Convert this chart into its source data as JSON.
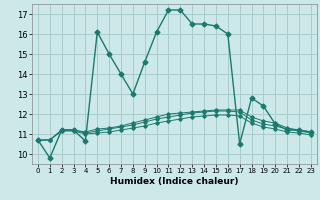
{
  "xlabel": "Humidex (Indice chaleur)",
  "background_color": "#cce8e8",
  "grid_color": "#aacccc",
  "line_color": "#1a7a6e",
  "xlim": [
    -0.5,
    23.5
  ],
  "ylim": [
    9.5,
    17.5
  ],
  "yticks": [
    10,
    11,
    12,
    13,
    14,
    15,
    16,
    17
  ],
  "xticks": [
    0,
    1,
    2,
    3,
    4,
    5,
    6,
    7,
    8,
    9,
    10,
    11,
    12,
    13,
    14,
    15,
    16,
    17,
    18,
    19,
    20,
    21,
    22,
    23
  ],
  "series": [
    [
      10.7,
      9.8,
      11.2,
      11.2,
      10.65,
      16.1,
      15.0,
      14.0,
      13.0,
      14.6,
      16.1,
      17.2,
      17.2,
      16.5,
      16.5,
      16.4,
      16.0,
      10.5,
      12.8,
      12.4,
      11.5,
      11.2,
      11.2,
      11.1
    ],
    [
      10.7,
      10.7,
      11.2,
      11.2,
      11.1,
      11.25,
      11.3,
      11.4,
      11.55,
      11.7,
      11.85,
      12.0,
      12.05,
      12.1,
      12.15,
      12.2,
      12.2,
      12.2,
      11.85,
      11.65,
      11.55,
      11.3,
      11.2,
      11.1
    ],
    [
      10.7,
      10.7,
      11.2,
      11.2,
      11.05,
      11.15,
      11.25,
      11.35,
      11.45,
      11.6,
      11.75,
      11.85,
      11.95,
      12.05,
      12.1,
      12.15,
      12.15,
      12.1,
      11.7,
      11.5,
      11.4,
      11.25,
      11.15,
      11.05
    ],
    [
      10.7,
      10.7,
      11.15,
      11.15,
      11.0,
      11.05,
      11.1,
      11.2,
      11.3,
      11.4,
      11.55,
      11.65,
      11.75,
      11.85,
      11.9,
      11.95,
      11.95,
      11.9,
      11.55,
      11.35,
      11.25,
      11.1,
      11.05,
      10.95
    ]
  ]
}
